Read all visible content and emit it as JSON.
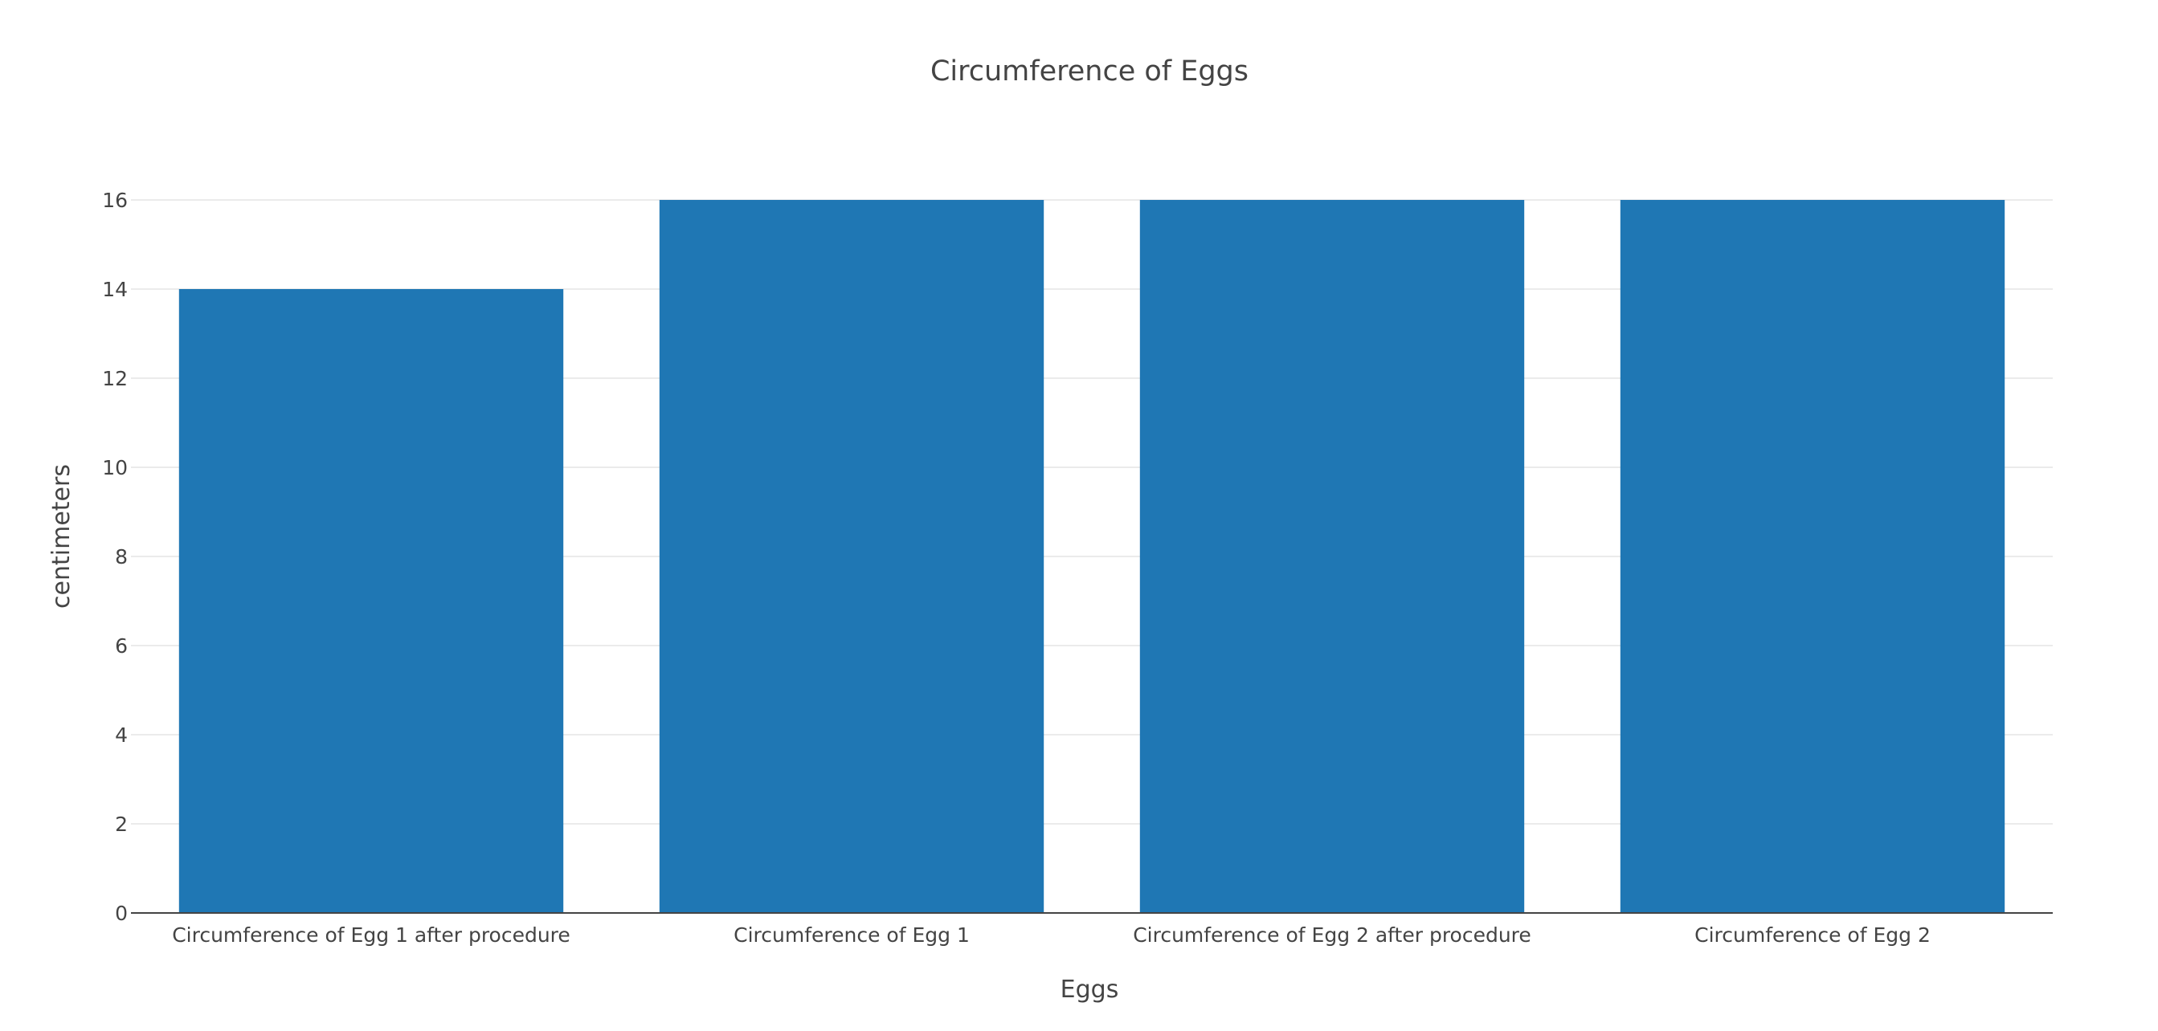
{
  "chart_data": {
    "type": "bar",
    "title": "Circumference of Eggs",
    "xlabel": "Eggs",
    "ylabel": "centimeters",
    "categories": [
      "Circumference of Egg 1 after procedure",
      "Circumference of Egg 1",
      "Circumference of Egg 2 after procedure",
      "Circumference of Egg 2"
    ],
    "values": [
      14,
      16,
      16,
      16
    ],
    "ylim": [
      0,
      16
    ],
    "yticks": [
      0,
      2,
      4,
      6,
      8,
      10,
      12,
      14,
      16
    ],
    "grid": true,
    "legend": "none",
    "bar_color": "#1f77b4"
  }
}
